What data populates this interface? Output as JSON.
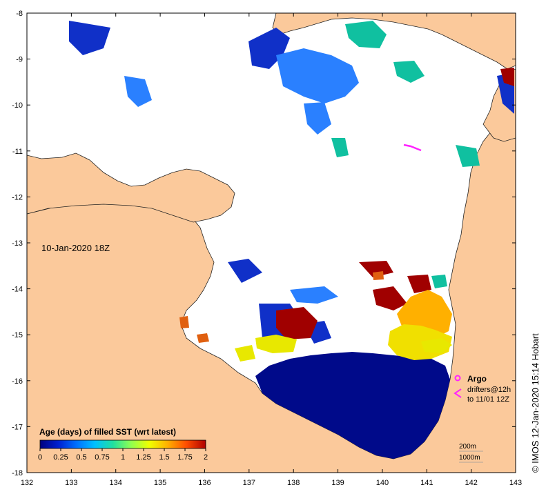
{
  "map": {
    "date_label": "10-Jan-2020 18Z",
    "credit": "© IMOS 12-Jan-2020 15:14 Hobart",
    "x_ticks": [
      "132",
      "133",
      "134",
      "135",
      "136",
      "137",
      "138",
      "139",
      "140",
      "141",
      "142",
      "143"
    ],
    "y_ticks": [
      "-8",
      "-9",
      "-10",
      "-11",
      "-12",
      "-13",
      "-14",
      "-15",
      "-16",
      "-17",
      "-18"
    ],
    "x_range": [
      132,
      143
    ],
    "y_range": [
      -18,
      -8
    ],
    "colors": {
      "land": "#fbc99b",
      "ocean_nodata": "#ffffff",
      "coast": "#222222"
    }
  },
  "colorbar": {
    "title": "Age (days) of filled SST (wrt latest)",
    "labels": [
      "0",
      "0.25",
      "0.5",
      "0.75",
      "1",
      "1.25",
      "1.5",
      "1.75",
      "2"
    ],
    "range": [
      0,
      2
    ],
    "colors": [
      "#00007f",
      "#0020d0",
      "#0070ff",
      "#00c0ff",
      "#20e0a0",
      "#90ff50",
      "#f0ff00",
      "#ffb000",
      "#ff5000",
      "#b00000"
    ]
  },
  "legend": {
    "argo_label": "Argo",
    "drifters_label": "drifters@12h",
    "drifters_sub": "to 11/01 12Z",
    "argo_color": "#ff22ff",
    "drifter_color": "#ff22ff",
    "contour_200": "200m",
    "contour_1000": "1000m"
  }
}
